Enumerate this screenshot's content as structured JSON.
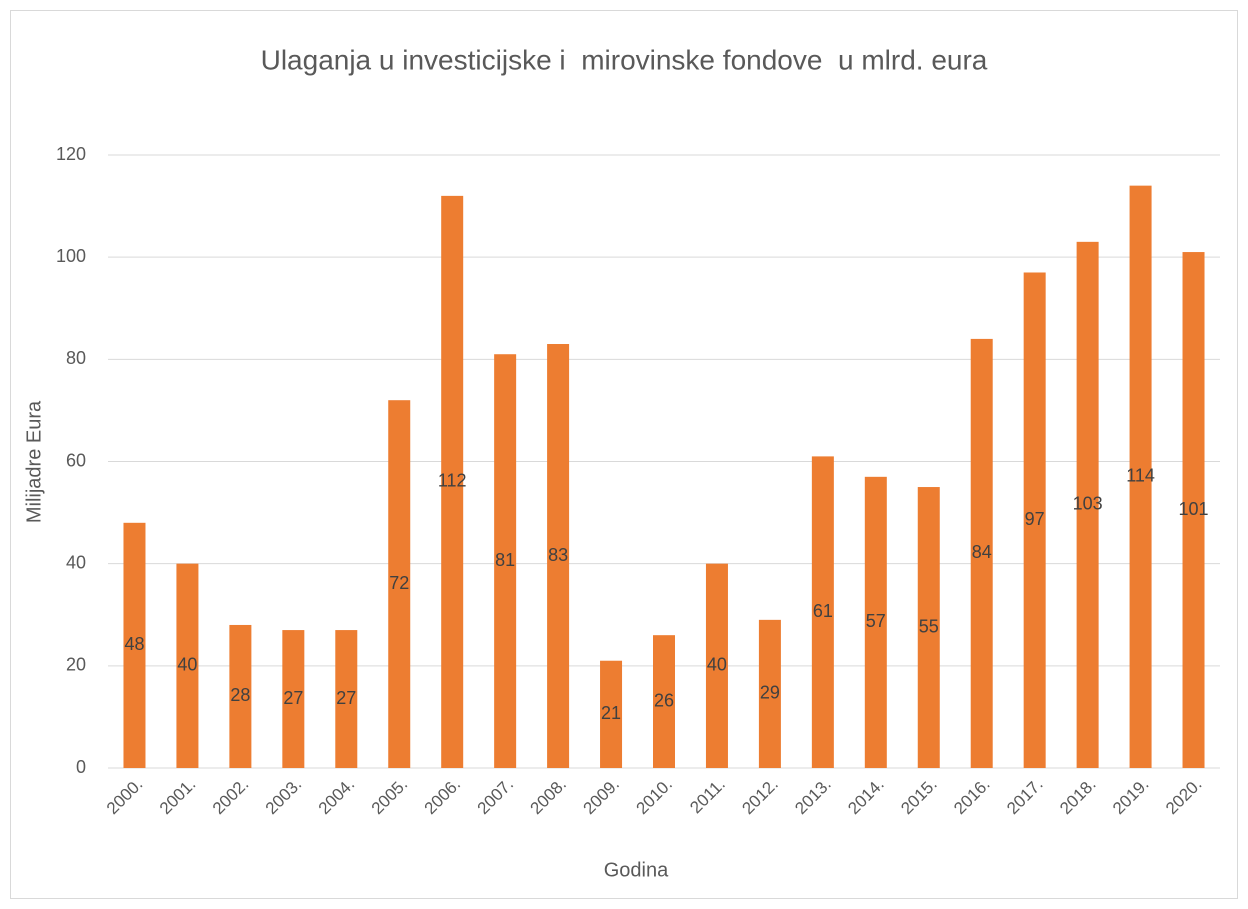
{
  "chart_data": {
    "type": "bar",
    "title": "Ulaganja u investicijske i  mirovinske fondove  u mlrd. eura",
    "x_label": "Godina",
    "y_label": "Milijadre Eura",
    "categories": [
      "2000.",
      "2001.",
      "2002.",
      "2003.",
      "2004.",
      "2005.",
      "2006.",
      "2007.",
      "2008.",
      "2009.",
      "2010.",
      "2011.",
      "2012.",
      "2013.",
      "2014.",
      "2015.",
      "2016.",
      "2017.",
      "2018.",
      "2019.",
      "2020."
    ],
    "values": [
      48,
      40,
      28,
      27,
      27,
      72,
      112,
      81,
      83,
      21,
      26,
      40,
      29,
      61,
      57,
      55,
      84,
      97,
      103,
      114,
      101
    ],
    "color": "#ed7d31",
    "ylim": [
      0,
      120
    ],
    "yticks": [
      0,
      20,
      40,
      60,
      80,
      100,
      120
    ],
    "grid": true
  }
}
